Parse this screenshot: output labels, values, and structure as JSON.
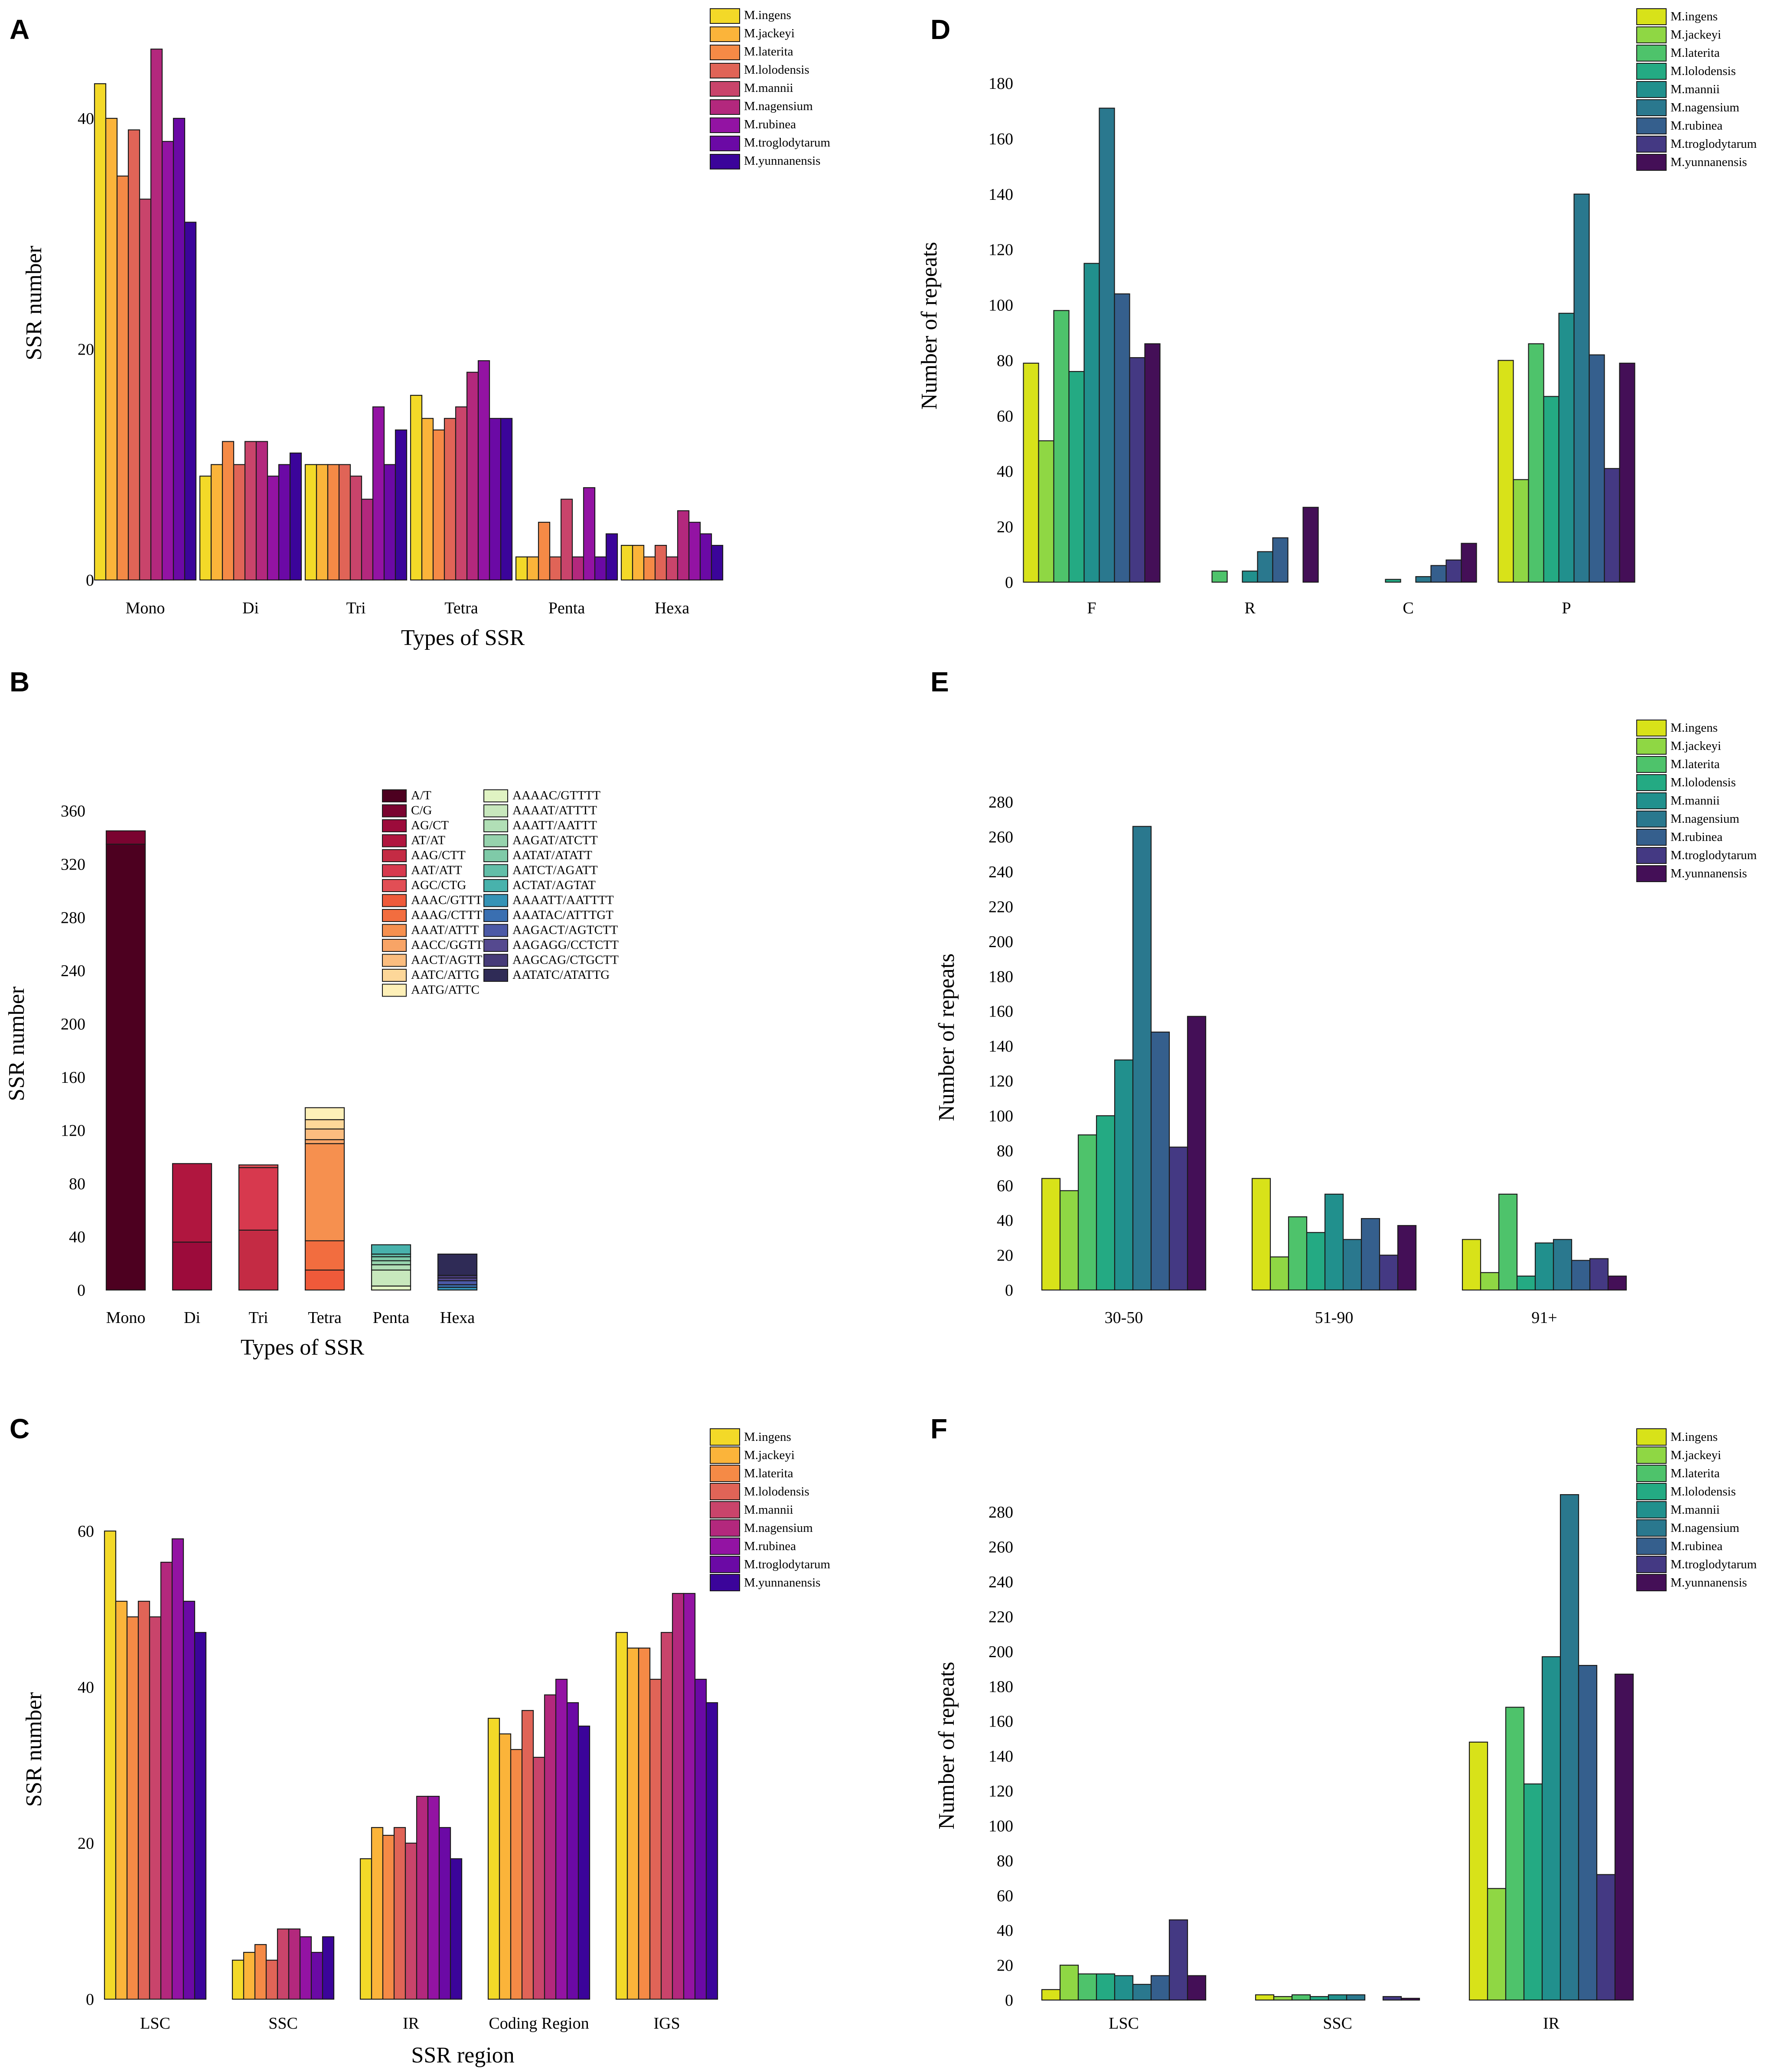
{
  "chart_data": [
    {
      "panel": "A",
      "type": "bar",
      "xlabel": "Types of SSR",
      "ylabel": "SSR number",
      "ylim": [
        0,
        48
      ],
      "yticks": [
        0,
        20,
        40
      ],
      "categories": [
        "Mono",
        "Di",
        "Tri",
        "Tetra",
        "Penta",
        "Hexa"
      ],
      "legend_position": "top-right",
      "colors": [
        "#f3d928",
        "#fbb43a",
        "#f58a46",
        "#e06457",
        "#c9446b",
        "#b3287d",
        "#9313a3",
        "#6b09a5",
        "#3b049a"
      ],
      "series": [
        {
          "name": "M.ingens",
          "values": [
            43,
            9,
            10,
            16,
            2,
            3
          ]
        },
        {
          "name": "M.jackeyi",
          "values": [
            40,
            10,
            10,
            14,
            2,
            3
          ]
        },
        {
          "name": "M.laterita",
          "values": [
            35,
            12,
            10,
            13,
            5,
            2
          ]
        },
        {
          "name": "M.lolodensis",
          "values": [
            39,
            10,
            10,
            14,
            2,
            3
          ]
        },
        {
          "name": "M.mannii",
          "values": [
            33,
            12,
            9,
            15,
            7,
            2
          ]
        },
        {
          "name": "M.nagensium",
          "values": [
            46,
            12,
            7,
            18,
            2,
            6
          ]
        },
        {
          "name": "M.rubinea",
          "values": [
            38,
            9,
            15,
            19,
            8,
            5
          ]
        },
        {
          "name": "M.troglodytarum",
          "values": [
            40,
            10,
            10,
            14,
            2,
            4
          ]
        },
        {
          "name": "M.yunnanensis",
          "values": [
            31,
            11,
            13,
            14,
            4,
            3
          ]
        }
      ]
    },
    {
      "panel": "B",
      "type": "stacked-bar",
      "xlabel": "Types of SSR",
      "ylabel": "SSR number",
      "ylim": [
        0,
        370
      ],
      "yticks": [
        0,
        40,
        80,
        120,
        160,
        200,
        240,
        280,
        320,
        360
      ],
      "categories": [
        "Mono",
        "Di",
        "Tri",
        "Tetra",
        "Penta",
        "Hexa"
      ],
      "legend_position": "top-center",
      "motifs": [
        {
          "name": "A/T",
          "color": "#4d0020",
          "category": "Mono",
          "value": 335
        },
        {
          "name": "C/G",
          "color": "#7a0430",
          "category": "Mono",
          "value": 10
        },
        {
          "name": "AG/CT",
          "color": "#9c0b3b",
          "category": "Di",
          "value": 36
        },
        {
          "name": "AT/AT",
          "color": "#b0163f",
          "category": "Di",
          "value": 59
        },
        {
          "name": "AAG/CTT",
          "color": "#c42b44",
          "category": "Tri",
          "value": 45
        },
        {
          "name": "AAT/ATT",
          "color": "#d7394e",
          "category": "Tri",
          "value": 47
        },
        {
          "name": "AGC/CTG",
          "color": "#e24e55",
          "category": "Tri",
          "value": 2
        },
        {
          "name": "AAAC/GTTT",
          "color": "#ef5a3a",
          "category": "Tetra",
          "value": 15
        },
        {
          "name": "AAAG/CTTT",
          "color": "#f26d3f",
          "category": "Tetra",
          "value": 22
        },
        {
          "name": "AAAT/ATTT",
          "color": "#f6904f",
          "category": "Tetra",
          "value": 73
        },
        {
          "name": "AACC/GGTT",
          "color": "#f8a466",
          "category": "Tetra",
          "value": 3
        },
        {
          "name": "AACT/AGTT",
          "color": "#fbbd7f",
          "category": "Tetra",
          "value": 8
        },
        {
          "name": "AATC/ATTG",
          "color": "#fdd799",
          "category": "Tetra",
          "value": 7
        },
        {
          "name": "AATG/ATTC",
          "color": "#fef0b8",
          "category": "Tetra",
          "value": 9
        },
        {
          "name": "AAAAC/GTTTT",
          "color": "#e0f3c3",
          "category": "Penta",
          "value": 3
        },
        {
          "name": "AAAAT/ATTTT",
          "color": "#c8e8bd",
          "category": "Penta",
          "value": 12
        },
        {
          "name": "AAATT/AATTT",
          "color": "#b1dfb6",
          "category": "Penta",
          "value": 4
        },
        {
          "name": "AAGAT/ATCTT",
          "color": "#96d3ad",
          "category": "Penta",
          "value": 3
        },
        {
          "name": "AATAT/ATATT",
          "color": "#7fcaa8",
          "category": "Penta",
          "value": 3
        },
        {
          "name": "AATCT/AGATT",
          "color": "#62bea8",
          "category": "Penta",
          "value": 2
        },
        {
          "name": "ACTAT/AGTAT",
          "color": "#48b2ac",
          "category": "Penta",
          "value": 7
        },
        {
          "name": "AAAATT/AATTTT",
          "color": "#3593b6",
          "category": "Hexa",
          "value": 2
        },
        {
          "name": "AAATAC/ATTTGT",
          "color": "#3a6fb1",
          "category": "Hexa",
          "value": 2
        },
        {
          "name": "AAGACT/AGTCTT",
          "color": "#4b59a6",
          "category": "Hexa",
          "value": 3
        },
        {
          "name": "AAGAGG/CCTCTT",
          "color": "#55498f",
          "category": "Hexa",
          "value": 2
        },
        {
          "name": "AAGCAG/CTGCTT",
          "color": "#463b78",
          "category": "Hexa",
          "value": 2
        },
        {
          "name": "AATATC/ATATTG",
          "color": "#2f2b56",
          "category": "Hexa",
          "value": 16
        }
      ]
    },
    {
      "panel": "C",
      "type": "bar",
      "xlabel": "SSR region",
      "ylabel": "SSR number",
      "ylim": [
        0,
        64
      ],
      "yticks": [
        0,
        20,
        40,
        60
      ],
      "categories": [
        "LSC",
        "SSC",
        "IR",
        "Coding Region",
        "IGS"
      ],
      "legend_position": "top-right",
      "colors": [
        "#f3d928",
        "#fbb43a",
        "#f58a46",
        "#e06457",
        "#c9446b",
        "#b3287d",
        "#9313a3",
        "#6b09a5",
        "#3b049a"
      ],
      "series": [
        {
          "name": "M.ingens",
          "values": [
            60,
            5,
            18,
            36,
            47
          ]
        },
        {
          "name": "M.jackeyi",
          "values": [
            51,
            6,
            22,
            34,
            45
          ]
        },
        {
          "name": "M.laterita",
          "values": [
            49,
            7,
            21,
            32,
            45
          ]
        },
        {
          "name": "M.lolodensis",
          "values": [
            51,
            5,
            22,
            37,
            41
          ]
        },
        {
          "name": "M.mannii",
          "values": [
            49,
            9,
            20,
            31,
            47
          ]
        },
        {
          "name": "M.nagensium",
          "values": [
            56,
            9,
            26,
            39,
            52
          ]
        },
        {
          "name": "M.rubinea",
          "values": [
            59,
            8,
            26,
            41,
            52
          ]
        },
        {
          "name": "M.troglodytarum",
          "values": [
            51,
            6,
            22,
            38,
            41
          ]
        },
        {
          "name": "M.yunnanensis",
          "values": [
            47,
            8,
            18,
            35,
            38
          ]
        }
      ]
    },
    {
      "panel": "D",
      "type": "bar",
      "xlabel": "",
      "ylabel": "Number of repeats",
      "ylim": [
        0,
        185
      ],
      "yticks": [
        0,
        20,
        40,
        60,
        80,
        100,
        120,
        140,
        160,
        180
      ],
      "categories": [
        "F",
        "R",
        "C",
        "P"
      ],
      "legend_position": "top-right",
      "colors": [
        "#d8e219",
        "#8fd744",
        "#4ec36b",
        "#24aa83",
        "#21908d",
        "#2a788e",
        "#355f8d",
        "#443983",
        "#440f57"
      ],
      "series": [
        {
          "name": "M.ingens",
          "values": [
            79,
            0,
            0,
            80
          ]
        },
        {
          "name": "M.jackeyi",
          "values": [
            51,
            0,
            0,
            37
          ]
        },
        {
          "name": "M.laterita",
          "values": [
            98,
            4,
            0,
            86
          ]
        },
        {
          "name": "M.lolodensis",
          "values": [
            76,
            0,
            1,
            67
          ]
        },
        {
          "name": "M.mannii",
          "values": [
            115,
            4,
            0,
            97
          ]
        },
        {
          "name": "M.nagensium",
          "values": [
            171,
            11,
            2,
            140
          ]
        },
        {
          "name": "M.rubinea",
          "values": [
            104,
            16,
            6,
            82
          ]
        },
        {
          "name": "M.troglodytarum",
          "values": [
            81,
            0,
            8,
            41
          ]
        },
        {
          "name": "M.yunnanensis",
          "values": [
            86,
            27,
            14,
            79
          ]
        }
      ]
    },
    {
      "panel": "E",
      "type": "bar",
      "xlabel": "",
      "ylabel": "Number of repeats",
      "ylim": [
        0,
        290
      ],
      "yticks": [
        0,
        20,
        40,
        60,
        80,
        100,
        120,
        140,
        160,
        180,
        200,
        220,
        240,
        260,
        280
      ],
      "categories": [
        "30-50",
        "51-90",
        "91+"
      ],
      "legend_position": "top-right",
      "colors": [
        "#d8e219",
        "#8fd744",
        "#4ec36b",
        "#24aa83",
        "#21908d",
        "#2a788e",
        "#355f8d",
        "#443983",
        "#440f57"
      ],
      "series": [
        {
          "name": "M.ingens",
          "values": [
            64,
            64,
            29
          ]
        },
        {
          "name": "M.jackeyi",
          "values": [
            57,
            19,
            10
          ]
        },
        {
          "name": "M.laterita",
          "values": [
            89,
            42,
            55
          ]
        },
        {
          "name": "M.lolodensis",
          "values": [
            100,
            33,
            8
          ]
        },
        {
          "name": "M.mannii",
          "values": [
            132,
            55,
            27
          ]
        },
        {
          "name": "M.nagensium",
          "values": [
            266,
            29,
            29
          ]
        },
        {
          "name": "M.rubinea",
          "values": [
            148,
            41,
            17
          ]
        },
        {
          "name": "M.troglodytarum",
          "values": [
            82,
            20,
            18
          ]
        },
        {
          "name": "M.yunnanensis",
          "values": [
            157,
            37,
            8
          ]
        }
      ]
    },
    {
      "panel": "F",
      "type": "bar",
      "xlabel": "",
      "ylabel": "Number of repeats",
      "ylim": [
        0,
        292
      ],
      "yticks": [
        0,
        20,
        40,
        60,
        80,
        100,
        120,
        140,
        160,
        180,
        200,
        220,
        240,
        260,
        280
      ],
      "categories": [
        "LSC",
        "SSC",
        "IR"
      ],
      "legend_position": "top-right",
      "colors": [
        "#d8e219",
        "#8fd744",
        "#4ec36b",
        "#24aa83",
        "#21908d",
        "#2a788e",
        "#355f8d",
        "#443983",
        "#440f57"
      ],
      "series": [
        {
          "name": "M.ingens",
          "values": [
            6,
            3,
            148
          ]
        },
        {
          "name": "M.jackeyi",
          "values": [
            20,
            2,
            64
          ]
        },
        {
          "name": "M.laterita",
          "values": [
            15,
            3,
            168
          ]
        },
        {
          "name": "M.lolodensis",
          "values": [
            15,
            2,
            124
          ]
        },
        {
          "name": "M.mannii",
          "values": [
            14,
            3,
            197
          ]
        },
        {
          "name": "M.nagensium",
          "values": [
            9,
            3,
            290
          ]
        },
        {
          "name": "M.rubinea",
          "values": [
            14,
            0,
            192
          ]
        },
        {
          "name": "M.troglodytarum",
          "values": [
            46,
            2,
            72
          ]
        },
        {
          "name": "M.yunnanensis",
          "values": [
            14,
            1,
            187
          ]
        }
      ]
    }
  ]
}
